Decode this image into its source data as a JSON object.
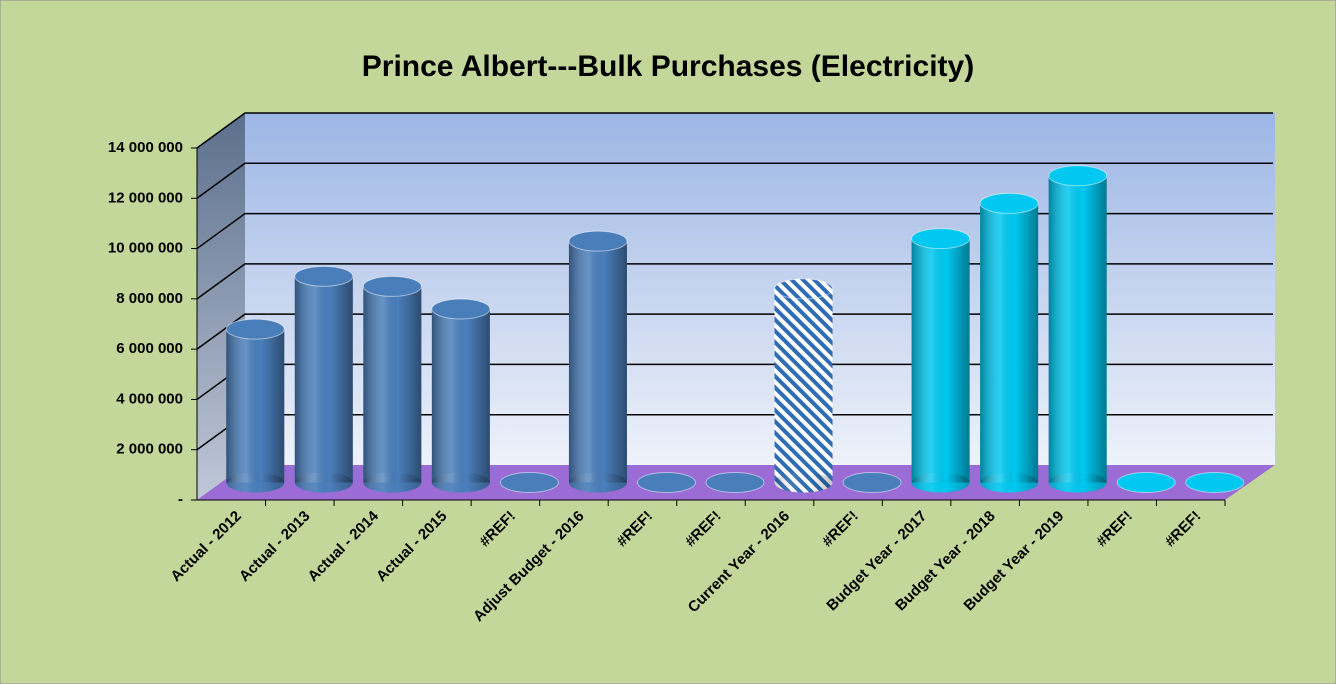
{
  "chart_data": {
    "type": "bar3d",
    "title": "Prince Albert---Bulk Purchases (Electricity)",
    "categories": [
      "Actual  - 2012",
      "Actual  - 2013",
      "Actual  - 2014",
      "Actual  - 2015",
      "#REF!",
      "Adjust Budget - 2016",
      "#REF!",
      "#REF!",
      "Current Year - 2016",
      "#REF!",
      "Budget Year  - 2017",
      "Budget Year  - 2018",
      "Budget Year  - 2019",
      "#REF!",
      "#REF!"
    ],
    "values": [
      6100000,
      8200000,
      7800000,
      6900000,
      0,
      9600000,
      0,
      0,
      7700000,
      0,
      9700000,
      11100000,
      12200000,
      0,
      0
    ],
    "colors": [
      "#4a7ebb",
      "#4a7ebb",
      "#4a7ebb",
      "#4a7ebb",
      "#4a7ebb",
      "#4a7ebb",
      "#4a7ebb",
      "#4a7ebb",
      "#2e6db4",
      "#4a7ebb",
      "#00c8f0",
      "#00c8f0",
      "#00c8f0",
      "#00c8f0",
      "#00c8f0"
    ],
    "patterns": [
      null,
      null,
      null,
      null,
      null,
      null,
      null,
      null,
      "diagonal",
      null,
      null,
      null,
      null,
      null,
      null
    ],
    "ylim": [
      0,
      14000000
    ],
    "yticks": [
      {
        "value": 0,
        "label": "-"
      },
      {
        "value": 2000000,
        "label": "2 000 000"
      },
      {
        "value": 4000000,
        "label": "4 000 000"
      },
      {
        "value": 6000000,
        "label": "6 000 000"
      },
      {
        "value": 8000000,
        "label": "8 000 000"
      },
      {
        "value": 10000000,
        "label": "10 000 000"
      },
      {
        "value": 12000000,
        "label": "12 000 000"
      },
      {
        "value": 14000000,
        "label": "14 000 000"
      }
    ],
    "grid": true
  }
}
